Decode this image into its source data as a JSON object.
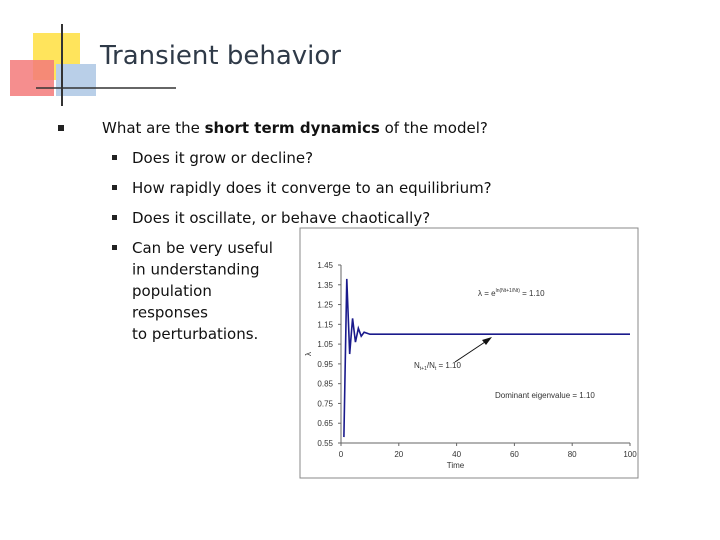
{
  "header": {
    "title": "Transient behavior"
  },
  "bullets": [
    {
      "parts": [
        "What are the ",
        "short term dynamics",
        " of the model?"
      ],
      "sub": [
        {
          "lines": [
            "Does it grow or decline?"
          ]
        },
        {
          "lines": [
            "How rapidly does it converge to an equilibrium?"
          ]
        },
        {
          "lines": [
            "Does it oscillate, or behave chaotically?"
          ]
        },
        {
          "lines": [
            "Can be very useful",
            "in understanding",
            "population",
            "responses",
            "to perturbations."
          ]
        }
      ]
    }
  ],
  "chart_data": {
    "type": "line",
    "x_label": "Time",
    "y_label": "λ",
    "annotations": [
      {
        "parts": [
          "λ = e",
          "ln(Nt+1/Nt)",
          " = 1.10"
        ]
      },
      {
        "parts": [
          "N",
          "t+1",
          "/N",
          "t",
          " = 1.10"
        ]
      },
      {
        "parts": [
          "Dominant eigenvalue = 1.10"
        ]
      }
    ],
    "x": [
      1,
      2,
      3,
      4,
      5,
      6,
      7,
      8,
      10,
      100
    ],
    "series": [
      {
        "color": "#1a1a8c",
        "values": [
          0.58,
          1.38,
          1.0,
          1.18,
          1.06,
          1.13,
          1.09,
          1.11,
          1.1,
          1.1
        ]
      }
    ],
    "xlim": [
      0,
      100
    ],
    "xticks": [
      0,
      20,
      40,
      60,
      80,
      100
    ],
    "ylim": [
      0.55,
      1.45
    ],
    "yticks": [
      0.55,
      0.65,
      0.75,
      0.85,
      0.95,
      1.05,
      1.15,
      1.25,
      1.35,
      1.45
    ]
  }
}
